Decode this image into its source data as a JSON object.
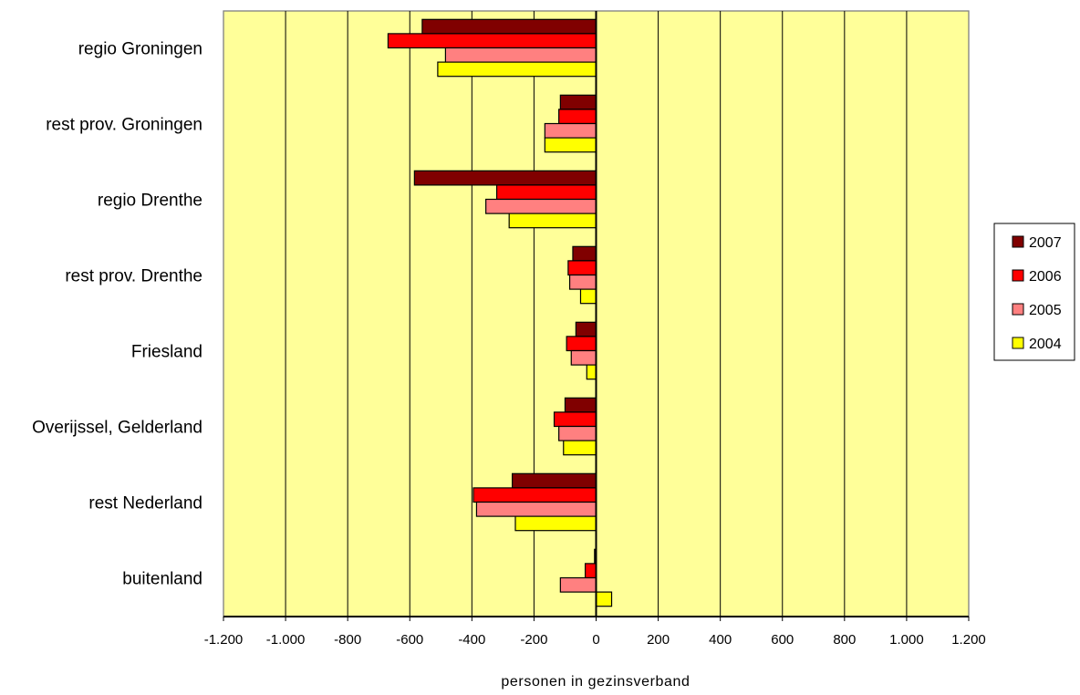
{
  "chart_data": {
    "type": "bar",
    "orientation": "horizontal",
    "categories": [
      "regio Groningen",
      "rest prov. Groningen",
      "regio Drenthe",
      "rest prov. Drenthe",
      "Friesland",
      "Overijssel, Gelderland",
      "rest Nederland",
      "buitenland"
    ],
    "series": [
      {
        "name": "2007",
        "color": "#800000",
        "values": [
          -560,
          -115,
          -585,
          -75,
          -65,
          -100,
          -270,
          -5
        ]
      },
      {
        "name": "2006",
        "color": "#ff0000",
        "values": [
          -670,
          -120,
          -320,
          -90,
          -95,
          -135,
          -395,
          -35
        ]
      },
      {
        "name": "2005",
        "color": "#ff8080",
        "values": [
          -485,
          -165,
          -355,
          -85,
          -80,
          -120,
          -385,
          -115
        ]
      },
      {
        "name": "2004",
        "color": "#ffff00",
        "values": [
          -510,
          -165,
          -280,
          -50,
          -30,
          -105,
          -260,
          50
        ]
      }
    ],
    "xlabel": "personen in gezinsverband",
    "ylabel": "",
    "xlim": [
      -1200,
      1200
    ],
    "xticks": [
      -1200,
      -1000,
      -800,
      -600,
      -400,
      -200,
      0,
      200,
      400,
      600,
      800,
      1000,
      1200
    ],
    "xtick_labels": [
      "-1.200",
      "-1.000",
      "-800",
      "-600",
      "-400",
      "-200",
      "0",
      "200",
      "400",
      "600",
      "800",
      "1.000",
      "1.200"
    ],
    "grid": "vertical",
    "plot_background": "#ffff99",
    "legend_position": "right"
  }
}
